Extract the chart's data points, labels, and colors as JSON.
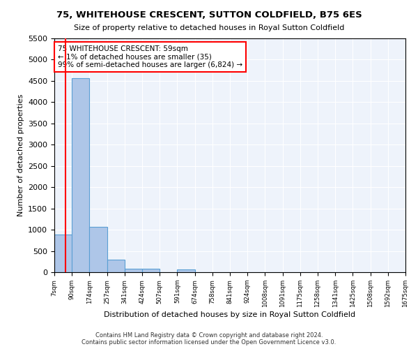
{
  "title_line1": "75, WHITEHOUSE CRESCENT, SUTTON COLDFIELD, B75 6ES",
  "title_line2": "Size of property relative to detached houses in Royal Sutton Coldfield",
  "xlabel": "Distribution of detached houses by size in Royal Sutton Coldfield",
  "ylabel": "Number of detached properties",
  "footer_line1": "Contains HM Land Registry data © Crown copyright and database right 2024.",
  "footer_line2": "Contains public sector information licensed under the Open Government Licence v3.0.",
  "bar_edges": [
    7,
    90,
    174,
    257,
    341,
    424,
    507,
    591,
    674,
    758,
    841,
    924,
    1008,
    1091,
    1175,
    1258,
    1341,
    1425,
    1508,
    1592,
    1675
  ],
  "bar_heights": [
    880,
    4560,
    1060,
    290,
    90,
    80,
    0,
    60,
    0,
    0,
    0,
    0,
    0,
    0,
    0,
    0,
    0,
    0,
    0,
    0
  ],
  "bar_color": "#aec6e8",
  "bar_edge_color": "#5a9fd4",
  "annotation_text": "75 WHITEHOUSE CRESCENT: 59sqm\n← 1% of detached houses are smaller (35)\n99% of semi-detached houses are larger (6,824) →",
  "annotation_box_color": "white",
  "annotation_box_edge_color": "red",
  "property_line_x": 59,
  "property_line_color": "red",
  "background_color": "#eef3fb",
  "ylim": [
    0,
    5500
  ],
  "xlim": [
    7,
    1675
  ],
  "tick_labels": [
    "7sqm",
    "90sqm",
    "174sqm",
    "257sqm",
    "341sqm",
    "424sqm",
    "507sqm",
    "591sqm",
    "674sqm",
    "758sqm",
    "841sqm",
    "924sqm",
    "1008sqm",
    "1091sqm",
    "1175sqm",
    "1258sqm",
    "1341sqm",
    "1425sqm",
    "1508sqm",
    "1592sqm",
    "1675sqm"
  ],
  "tick_positions": [
    7,
    90,
    174,
    257,
    341,
    424,
    507,
    591,
    674,
    758,
    841,
    924,
    1008,
    1091,
    1175,
    1258,
    1341,
    1425,
    1508,
    1592,
    1675
  ],
  "figsize": [
    6.0,
    5.0
  ],
  "dpi": 100
}
